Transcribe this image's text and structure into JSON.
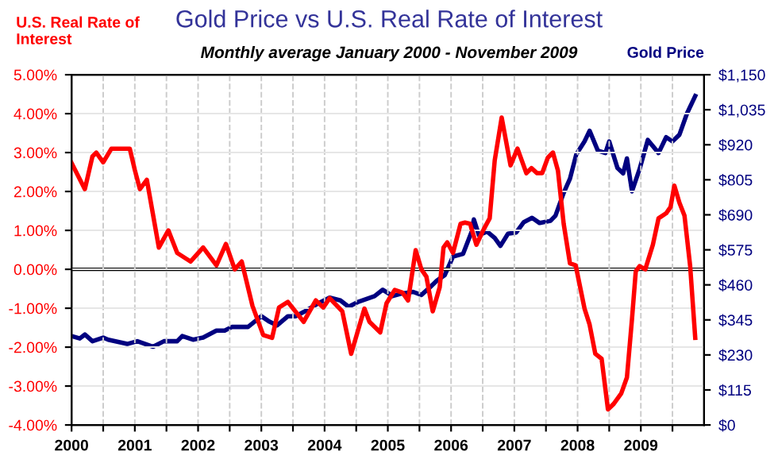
{
  "chart_data": {
    "type": "line",
    "title": "Gold Price vs U.S. Real Rate of Interest",
    "subtitle": "Monthly average January 2000 - November 2009",
    "series": [
      {
        "name": "U.S. Real Rate of Interest",
        "color": "#ff0000",
        "x": [
          2000.0,
          2000.21,
          2000.33,
          2000.39,
          2000.5,
          2000.63,
          2000.92,
          2001.0,
          2001.08,
          2001.19,
          2001.38,
          2001.53,
          2001.67,
          2001.88,
          2002.08,
          2002.29,
          2002.44,
          2002.58,
          2002.69,
          2002.86,
          2003.03,
          2003.17,
          2003.28,
          2003.42,
          2003.67,
          2003.86,
          2003.98,
          2004.08,
          2004.28,
          2004.42,
          2004.63,
          2004.71,
          2004.88,
          2004.98,
          2005.11,
          2005.23,
          2005.32,
          2005.44,
          2005.53,
          2005.61,
          2005.71,
          2005.82,
          2005.88,
          2005.94,
          2006.03,
          2006.15,
          2006.22,
          2006.3,
          2006.4,
          2006.52,
          2006.61,
          2006.69,
          2006.8,
          2006.94,
          2007.05,
          2007.19,
          2007.27,
          2007.36,
          2007.44,
          2007.53,
          2007.61,
          2007.69,
          2007.78,
          2007.88,
          2007.97,
          2008.11,
          2008.19,
          2008.28,
          2008.38,
          2008.48,
          2008.57,
          2008.69,
          2008.78,
          2008.86,
          2008.92,
          2008.98,
          2009.07,
          2009.19,
          2009.28,
          2009.4,
          2009.47,
          2009.53,
          2009.61,
          2009.69,
          2009.78,
          2009.86
        ],
        "values": [
          2.73,
          2.06,
          2.9,
          3.0,
          2.75,
          3.1,
          3.1,
          2.55,
          2.06,
          2.3,
          0.56,
          1.0,
          0.42,
          0.2,
          0.56,
          0.1,
          0.65,
          0.0,
          0.2,
          -0.94,
          -1.69,
          -1.76,
          -0.98,
          -0.84,
          -1.35,
          -0.8,
          -0.98,
          -0.74,
          -1.08,
          -2.17,
          -1.01,
          -1.35,
          -1.62,
          -0.87,
          -0.53,
          -0.6,
          -0.8,
          0.49,
          0.0,
          -0.19,
          -1.08,
          -0.46,
          0.56,
          0.69,
          0.42,
          1.17,
          1.2,
          1.17,
          0.63,
          1.04,
          1.31,
          2.8,
          3.9,
          2.67,
          3.1,
          2.47,
          2.6,
          2.47,
          2.47,
          2.87,
          3.0,
          2.53,
          1.17,
          0.15,
          0.1,
          -1.01,
          -1.42,
          -2.17,
          -2.3,
          -3.6,
          -3.46,
          -3.19,
          -2.78,
          -1.28,
          -0.05,
          0.08,
          0.0,
          0.63,
          1.31,
          1.44,
          1.6,
          2.15,
          1.71,
          1.38,
          0.08,
          -1.76
        ]
      },
      {
        "name": "Gold Price",
        "color": "#000080",
        "axis": "y2",
        "x": [
          2000.0,
          2000.13,
          2000.21,
          2000.33,
          2000.5,
          2000.58,
          2000.88,
          2001.04,
          2001.29,
          2001.46,
          2001.67,
          2001.75,
          2001.92,
          2002.08,
          2002.29,
          2002.42,
          2002.54,
          2002.79,
          2003.0,
          2003.13,
          2003.25,
          2003.42,
          2003.54,
          2003.67,
          2003.88,
          2004.08,
          2004.25,
          2004.38,
          2004.54,
          2004.79,
          2004.92,
          2005.04,
          2005.07,
          2005.23,
          2005.4,
          2005.53,
          2005.65,
          2005.78,
          2005.9,
          2006.03,
          2006.19,
          2006.32,
          2006.36,
          2006.44,
          2006.57,
          2006.69,
          2006.78,
          2006.9,
          2007.03,
          2007.15,
          2007.28,
          2007.4,
          2007.57,
          2007.65,
          2007.78,
          2007.88,
          2007.98,
          2008.11,
          2008.19,
          2008.32,
          2008.44,
          2008.5,
          2008.63,
          2008.72,
          2008.78,
          2008.86,
          2008.98,
          2009.11,
          2009.28,
          2009.4,
          2009.5,
          2009.61,
          2009.73,
          2009.86
        ],
        "values": [
          292,
          284,
          297,
          275,
          287,
          280,
          266,
          275,
          257,
          275,
          275,
          292,
          280,
          287,
          310,
          310,
          322,
          322,
          357,
          339,
          327,
          357,
          357,
          371,
          397,
          418,
          409,
          388,
          405,
          423,
          444,
          428,
          423,
          432,
          437,
          427,
          449,
          475,
          492,
          553,
          562,
          632,
          675,
          623,
          635,
          614,
          588,
          628,
          632,
          666,
          680,
          663,
          670,
          687,
          762,
          809,
          889,
          931,
          966,
          901,
          893,
          931,
          844,
          826,
          875,
          767,
          840,
          936,
          893,
          945,
          931,
          953,
          1023,
          1080
        ]
      }
    ],
    "xlim": [
      2000,
      2010
    ],
    "xticks": [
      {
        "value": 2000,
        "label": "2000"
      },
      {
        "value": 2000.5,
        "label": null
      },
      {
        "value": 2001,
        "label": "2001"
      },
      {
        "value": 2001.5,
        "label": null
      },
      {
        "value": 2002,
        "label": "2002"
      },
      {
        "value": 2002.5,
        "label": null
      },
      {
        "value": 2003,
        "label": "2003"
      },
      {
        "value": 2003.5,
        "label": null
      },
      {
        "value": 2004,
        "label": "2004"
      },
      {
        "value": 2004.5,
        "label": null
      },
      {
        "value": 2005,
        "label": "2005"
      },
      {
        "value": 2005.5,
        "label": null
      },
      {
        "value": 2006,
        "label": "2006"
      },
      {
        "value": 2006.5,
        "label": null
      },
      {
        "value": 2007,
        "label": "2007"
      },
      {
        "value": 2007.5,
        "label": null
      },
      {
        "value": 2008,
        "label": "2008"
      },
      {
        "value": 2008.5,
        "label": null
      },
      {
        "value": 2009,
        "label": "2009"
      },
      {
        "value": 2009.5,
        "label": null
      }
    ],
    "ylim": [
      -4,
      5
    ],
    "yticks": [
      {
        "value": -4,
        "label": "-4.00%"
      },
      {
        "value": -3,
        "label": "-3.00%"
      },
      {
        "value": -2,
        "label": "-2.00%"
      },
      {
        "value": -1,
        "label": "-1.00%"
      },
      {
        "value": 0,
        "label": "0.00%"
      },
      {
        "value": 1,
        "label": "1.00%"
      },
      {
        "value": 2,
        "label": "2.00%"
      },
      {
        "value": 3,
        "label": "3.00%"
      },
      {
        "value": 4,
        "label": "4.00%"
      },
      {
        "value": 5,
        "label": "5.00%"
      }
    ],
    "y2lim": [
      0,
      1150
    ],
    "y2ticks": [
      {
        "value": 0,
        "label": "$0"
      },
      {
        "value": 115,
        "label": "$115"
      },
      {
        "value": 230,
        "label": "$230"
      },
      {
        "value": 345,
        "label": "$345"
      },
      {
        "value": 460,
        "label": "$460"
      },
      {
        "value": 575,
        "label": "$575"
      },
      {
        "value": 690,
        "label": "$690"
      },
      {
        "value": 805,
        "label": "$805"
      },
      {
        "value": 920,
        "label": "$920"
      },
      {
        "value": 1035,
        "label": "$1,035"
      },
      {
        "value": 1150,
        "label": "$1,150"
      }
    ],
    "ref_lines": [
      {
        "axis": "y",
        "value": 0,
        "label": null,
        "color": "#000000"
      }
    ],
    "grid": true,
    "legend": false,
    "line_style": "solid",
    "marker": "none"
  }
}
